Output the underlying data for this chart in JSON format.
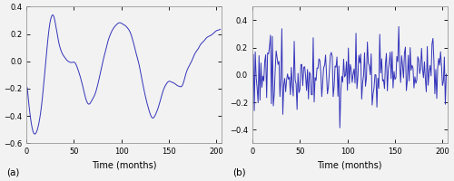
{
  "n_points": 204,
  "line_color": "#3333BB",
  "line_width": 0.7,
  "figsize": [
    5.0,
    2.0
  ],
  "dpi": 100,
  "xlim": [
    0,
    205
  ],
  "xticks": [
    0,
    50,
    100,
    150,
    200
  ],
  "subplot_a": {
    "ylim": [
      -0.6,
      0.4
    ],
    "yticks": [
      -0.6,
      -0.4,
      -0.2,
      0,
      0.2,
      0.4
    ],
    "xlabel": "Time (months)",
    "label": "(a)"
  },
  "subplot_b": {
    "ylim": [
      -0.5,
      0.5
    ],
    "yticks": [
      -0.4,
      -0.2,
      0,
      0.2,
      0.4
    ],
    "xlabel": "Time (months)",
    "label": "(b)"
  },
  "bg_color": "#f2f2f2",
  "axes_bg": "#f2f2f2"
}
